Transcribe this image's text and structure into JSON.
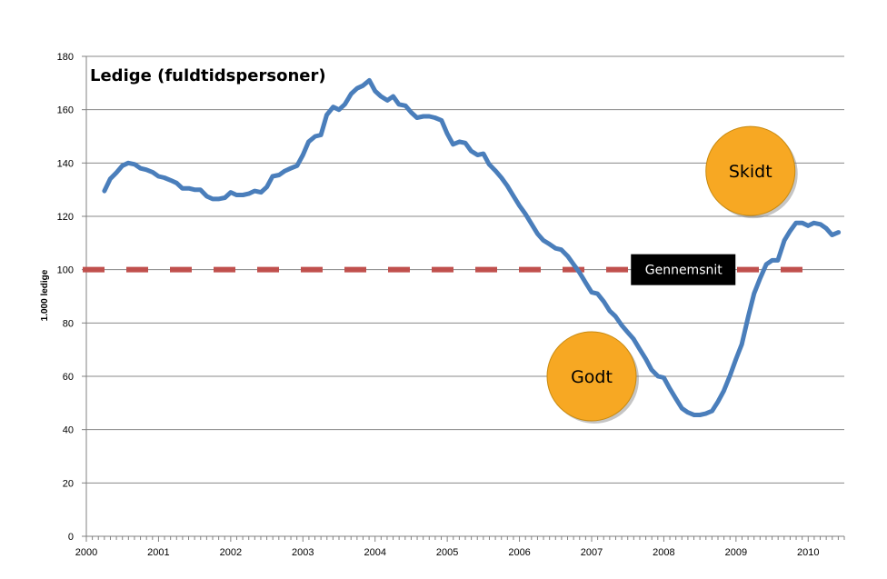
{
  "chart_data": {
    "type": "line",
    "title": "Ledige (fuldtidspersoner)",
    "ylabel": "1.000 ledige",
    "xlabel": "",
    "ylim": [
      0,
      180
    ],
    "yticks": [
      0,
      20,
      40,
      60,
      80,
      100,
      120,
      140,
      160,
      180
    ],
    "xlim": [
      2000,
      2010.5
    ],
    "xticks": [
      "2000",
      "2001",
      "2002",
      "2003",
      "2004",
      "2005",
      "2006",
      "2007",
      "2008",
      "2009",
      "2010"
    ],
    "grid": true,
    "series": [
      {
        "name": "Ledige",
        "color": "#4a7ebb",
        "points": [
          [
            2000.25,
            129.5
          ],
          [
            2000.33,
            134
          ],
          [
            2000.42,
            136.5
          ],
          [
            2000.5,
            139
          ],
          [
            2000.58,
            140
          ],
          [
            2000.67,
            139.5
          ],
          [
            2000.75,
            138
          ],
          [
            2000.83,
            137.5
          ],
          [
            2000.92,
            136.5
          ],
          [
            2001.0,
            135
          ],
          [
            2001.08,
            134.5
          ],
          [
            2001.17,
            133.5
          ],
          [
            2001.25,
            132.5
          ],
          [
            2001.33,
            130.5
          ],
          [
            2001.42,
            130.5
          ],
          [
            2001.5,
            130
          ],
          [
            2001.58,
            130
          ],
          [
            2001.67,
            127.5
          ],
          [
            2001.75,
            126.5
          ],
          [
            2001.83,
            126.5
          ],
          [
            2001.92,
            127
          ],
          [
            2002.0,
            129
          ],
          [
            2002.08,
            128
          ],
          [
            2002.17,
            128
          ],
          [
            2002.25,
            128.5
          ],
          [
            2002.33,
            129.5
          ],
          [
            2002.42,
            129
          ],
          [
            2002.5,
            131
          ],
          [
            2002.58,
            135
          ],
          [
            2002.67,
            135.5
          ],
          [
            2002.75,
            137
          ],
          [
            2002.83,
            138
          ],
          [
            2002.92,
            139
          ],
          [
            2003.0,
            143
          ],
          [
            2003.08,
            148
          ],
          [
            2003.17,
            150
          ],
          [
            2003.25,
            150.5
          ],
          [
            2003.33,
            158
          ],
          [
            2003.42,
            161
          ],
          [
            2003.5,
            160
          ],
          [
            2003.58,
            162
          ],
          [
            2003.67,
            166
          ],
          [
            2003.75,
            168
          ],
          [
            2003.83,
            169
          ],
          [
            2003.92,
            171
          ],
          [
            2004.0,
            167
          ],
          [
            2004.08,
            165
          ],
          [
            2004.17,
            163.5
          ],
          [
            2004.25,
            165
          ],
          [
            2004.33,
            162
          ],
          [
            2004.42,
            161.5
          ],
          [
            2004.5,
            159
          ],
          [
            2004.58,
            157
          ],
          [
            2004.67,
            157.5
          ],
          [
            2004.75,
            157.5
          ],
          [
            2004.83,
            157
          ],
          [
            2004.92,
            156
          ],
          [
            2005.0,
            151
          ],
          [
            2005.08,
            147
          ],
          [
            2005.17,
            148
          ],
          [
            2005.25,
            147.5
          ],
          [
            2005.33,
            144.5
          ],
          [
            2005.42,
            143
          ],
          [
            2005.5,
            143.5
          ],
          [
            2005.58,
            139.5
          ],
          [
            2005.67,
            137
          ],
          [
            2005.75,
            134.5
          ],
          [
            2005.83,
            131.5
          ],
          [
            2005.92,
            127.5
          ],
          [
            2006.0,
            124
          ],
          [
            2006.08,
            121
          ],
          [
            2006.17,
            117
          ],
          [
            2006.25,
            113.5
          ],
          [
            2006.33,
            111
          ],
          [
            2006.42,
            109.5
          ],
          [
            2006.5,
            108
          ],
          [
            2006.58,
            107.5
          ],
          [
            2006.67,
            105
          ],
          [
            2006.75,
            102
          ],
          [
            2006.83,
            99
          ],
          [
            2006.92,
            95
          ],
          [
            2007.0,
            91.5
          ],
          [
            2007.08,
            91
          ],
          [
            2007.17,
            88
          ],
          [
            2007.25,
            84.5
          ],
          [
            2007.33,
            82.5
          ],
          [
            2007.42,
            79
          ],
          [
            2007.5,
            76.5
          ],
          [
            2007.58,
            74
          ],
          [
            2007.67,
            70
          ],
          [
            2007.75,
            66.5
          ],
          [
            2007.83,
            62.5
          ],
          [
            2007.92,
            60
          ],
          [
            2008.0,
            59.5
          ],
          [
            2008.08,
            55.5
          ],
          [
            2008.17,
            51.5
          ],
          [
            2008.25,
            48
          ],
          [
            2008.33,
            46.5
          ],
          [
            2008.42,
            45.5
          ],
          [
            2008.5,
            45.5
          ],
          [
            2008.58,
            46
          ],
          [
            2008.67,
            47
          ],
          [
            2008.75,
            50.5
          ],
          [
            2008.83,
            54.5
          ],
          [
            2008.92,
            60.5
          ],
          [
            2009.0,
            66.5
          ],
          [
            2009.08,
            72
          ],
          [
            2009.17,
            82.5
          ],
          [
            2009.25,
            91
          ],
          [
            2009.33,
            96.5
          ],
          [
            2009.42,
            102
          ],
          [
            2009.5,
            103.5
          ],
          [
            2009.58,
            103.5
          ],
          [
            2009.67,
            111
          ],
          [
            2009.75,
            114.5
          ],
          [
            2009.83,
            117.5
          ],
          [
            2009.92,
            117.5
          ],
          [
            2010.0,
            116.5
          ],
          [
            2010.08,
            117.5
          ],
          [
            2010.17,
            117
          ],
          [
            2010.25,
            115.5
          ],
          [
            2010.33,
            113
          ],
          [
            2010.42,
            114
          ]
        ]
      }
    ],
    "average_line": {
      "value": 100,
      "color": "#c0504d"
    },
    "annotations": {
      "average_label": "Gennemsnit",
      "bad_bubble": {
        "label": "Skidt",
        "x": 2009.2,
        "y": 137
      },
      "good_bubble": {
        "label": "Godt",
        "x": 2007.0,
        "y": 60
      }
    },
    "colors": {
      "bubble_fill": "#f7a823",
      "label_box": "#000000",
      "grid": "#888888"
    }
  }
}
